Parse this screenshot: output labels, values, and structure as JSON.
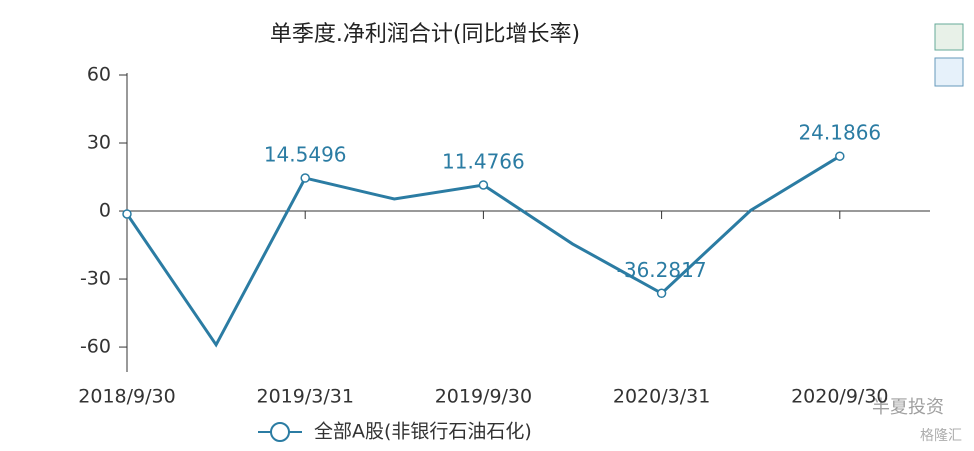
{
  "chart_data": {
    "type": "line",
    "title": "单季度.净利润合计(同比增长率)",
    "categories": [
      "2018/9/30",
      null,
      "2019/3/31",
      null,
      "2019/9/30",
      null,
      "2020/3/31",
      null,
      "2020/9/30"
    ],
    "series": [
      {
        "name": "全部A股(非银行石油石化)",
        "color": "#2b7ca3",
        "values": [
          -1.3,
          -59,
          14.5496,
          5.3,
          11.4766,
          -14.5,
          -36.2817,
          0.3,
          24.1866
        ],
        "value_labels": [
          null,
          null,
          "14.5496",
          null,
          "11.4766",
          null,
          "-36.2817",
          null,
          "24.1866"
        ]
      }
    ],
    "ylim": [
      -71,
      60
    ],
    "yticks": [
      -60,
      -30,
      0,
      30,
      60
    ],
    "legend": "bottom",
    "watermark": [
      "半夏投资",
      "格隆汇"
    ]
  }
}
